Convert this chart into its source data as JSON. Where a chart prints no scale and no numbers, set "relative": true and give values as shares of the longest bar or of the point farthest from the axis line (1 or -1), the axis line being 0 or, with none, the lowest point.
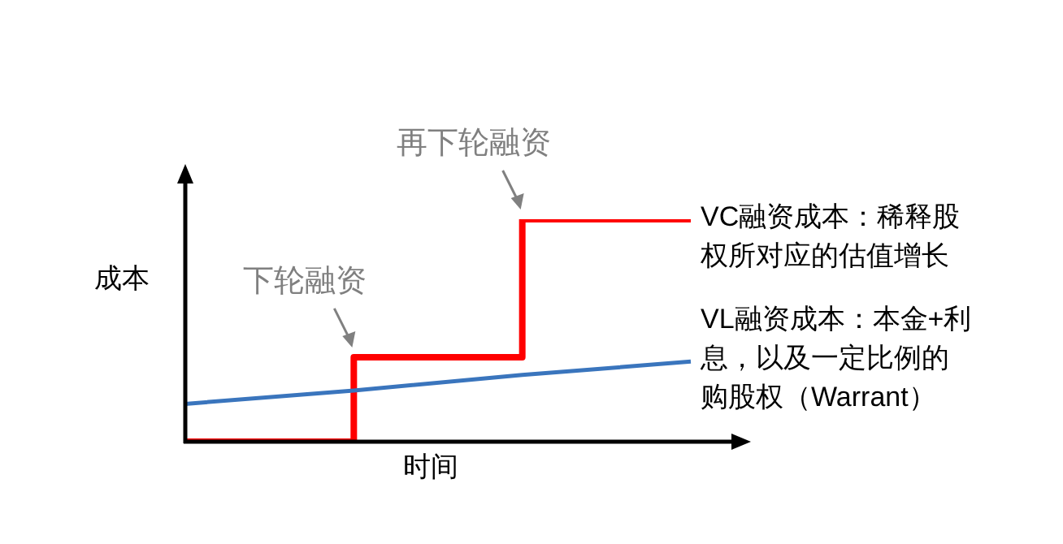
{
  "chart_data": {
    "type": "line",
    "relative": true,
    "xlabel": "时间",
    "ylabel": "成本",
    "categories": [
      null,
      null,
      null,
      null
    ],
    "series": [
      {
        "name": "VC融资成本：稀释股权所对应的估值增长",
        "type": "step",
        "color": "#ff0000",
        "values": [
          0,
          0.38,
          1,
          1
        ]
      },
      {
        "name": "VL融资成本：本金+利息，以及一定比例的购股权（Warrant）",
        "type": "line",
        "color": "#3a75bd",
        "values": [
          0.17,
          0.23,
          0.3,
          0.36
        ]
      }
    ],
    "annotations": [
      "下轮融资",
      "再下轮融资"
    ],
    "legend": false,
    "grid": false,
    "marker": "none",
    "line_style": "solid"
  }
}
